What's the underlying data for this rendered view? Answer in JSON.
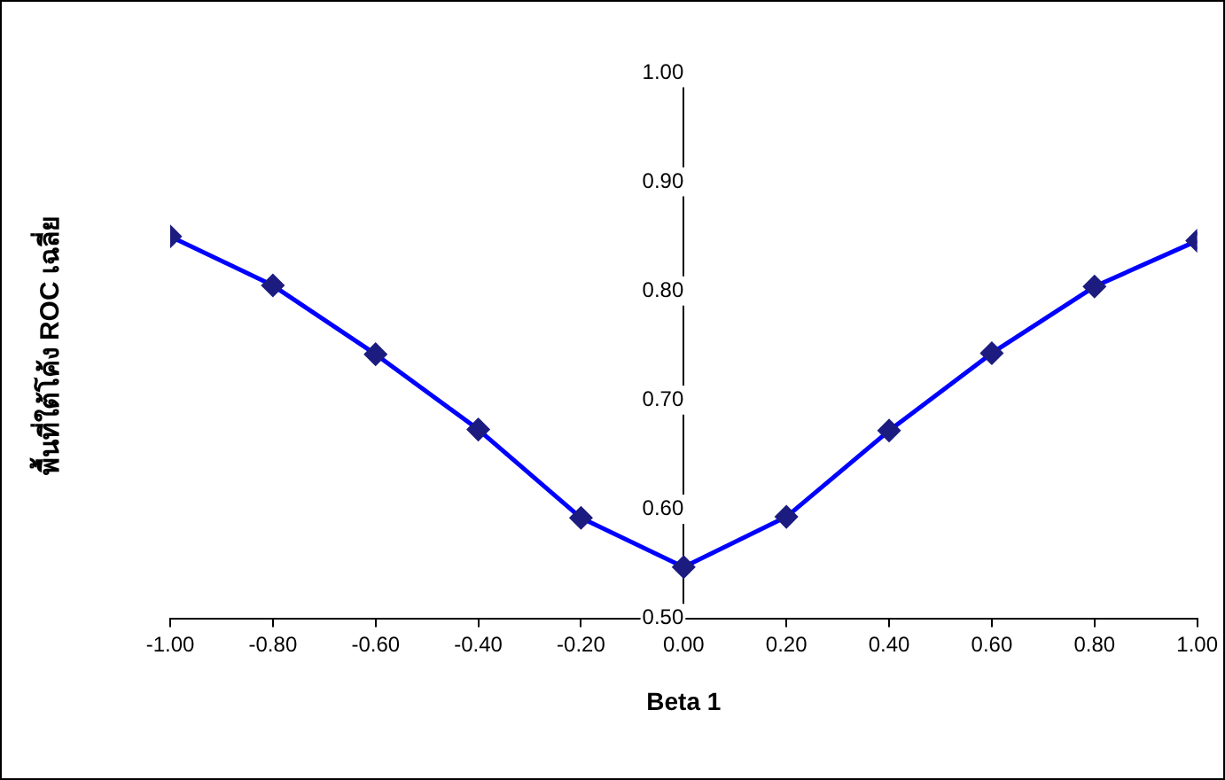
{
  "chart_data": {
    "type": "line",
    "xlabel": "Beta 1",
    "ylabel": "พื้นที่ใต้โค้ง ROC เฉลี่ย",
    "x": [
      -1,
      -0.8,
      -0.6,
      -0.4,
      -0.2,
      0,
      0.2,
      0.4,
      0.6,
      0.8,
      1
    ],
    "series": [
      {
        "color": "#0000ff",
        "values": [
          0.85,
          0.805,
          0.742,
          0.673,
          0.592,
          0.547,
          0.593,
          0.672,
          0.743,
          0.804,
          0.846
        ]
      }
    ],
    "xlim": [
      -1,
      1
    ],
    "ylim": [
      0.5,
      1
    ],
    "xticks": [
      {
        "value": -1,
        "label": "-1.00"
      },
      {
        "value": -0.8,
        "label": "-0.80"
      },
      {
        "value": -0.6,
        "label": "-0.60"
      },
      {
        "value": -0.4,
        "label": "-0.40"
      },
      {
        "value": -0.2,
        "label": "-0.20"
      },
      {
        "value": 0,
        "label": "0.00"
      },
      {
        "value": 0.2,
        "label": "0.20"
      },
      {
        "value": 0.4,
        "label": "0.40"
      },
      {
        "value": 0.6,
        "label": "0.60"
      },
      {
        "value": 0.8,
        "label": "0.80"
      },
      {
        "value": 1,
        "label": "1.00"
      }
    ],
    "yticks": [
      {
        "value": 0.5,
        "label": "0.50"
      },
      {
        "value": 0.6,
        "label": "0.60"
      },
      {
        "value": 0.7,
        "label": "0.70"
      },
      {
        "value": 0.8,
        "label": "0.80"
      },
      {
        "value": 0.9,
        "label": "0.90"
      },
      {
        "value": 1,
        "label": "1.00"
      }
    ],
    "marker": "diamond",
    "line_style": "solid"
  }
}
